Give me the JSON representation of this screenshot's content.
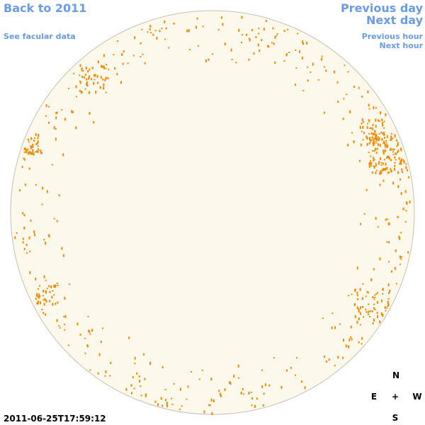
{
  "header": {
    "back_link": "Back to 2011",
    "facular_link": "See facular data"
  },
  "navigation": {
    "previous_day": "Previous day",
    "next_day": "Next day",
    "previous_hour": "Previous hour",
    "next_hour": "Next hour"
  },
  "timestamp": "2011-06-25T17:59:12",
  "compass": {
    "north": "N",
    "east": "E",
    "center": "+",
    "west": "W",
    "south": "S"
  }
}
